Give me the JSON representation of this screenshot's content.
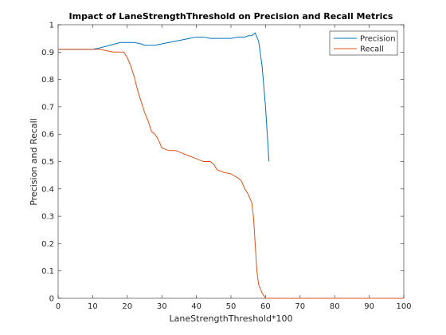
{
  "chart_data": {
    "type": "line",
    "title": "Impact of LaneStrengthThreshold on Precision and Recall Metrics",
    "xlabel": "LaneStrengthThreshold*100",
    "ylabel": "Precision and Recall",
    "xlim": [
      0,
      100
    ],
    "ylim": [
      0,
      1
    ],
    "xticks": [
      0,
      10,
      20,
      30,
      40,
      50,
      60,
      70,
      80,
      90,
      100
    ],
    "xtick_labels": [
      "0",
      "10",
      "20",
      "30",
      "40",
      "50",
      "60",
      "70",
      "80",
      "90",
      "100"
    ],
    "yticks": [
      0,
      0.1,
      0.2,
      0.3,
      0.4,
      0.5,
      0.6,
      0.7,
      0.8,
      0.9,
      1
    ],
    "ytick_labels": [
      "0",
      "0.1",
      "0.2",
      "0.3",
      "0.4",
      "0.5",
      "0.6",
      "0.7",
      "0.8",
      "0.9",
      "1"
    ],
    "grid": false,
    "legend_position": "top-right",
    "series": [
      {
        "name": "Precision",
        "color": "#0072BD",
        "x": [
          0,
          10,
          12,
          15,
          18,
          20,
          22,
          24,
          25,
          27,
          28,
          30,
          32,
          34,
          36,
          38,
          40,
          42,
          44,
          46,
          48,
          50,
          52,
          54,
          55,
          56,
          57,
          58,
          59,
          60,
          61
        ],
        "y": [
          0.91,
          0.91,
          0.915,
          0.925,
          0.935,
          0.935,
          0.935,
          0.93,
          0.925,
          0.925,
          0.925,
          0.93,
          0.935,
          0.94,
          0.945,
          0.95,
          0.955,
          0.955,
          0.95,
          0.95,
          0.95,
          0.95,
          0.955,
          0.955,
          0.96,
          0.96,
          0.97,
          0.94,
          0.85,
          0.7,
          0.5
        ]
      },
      {
        "name": "Recall",
        "color": "#D95319",
        "x": [
          0,
          5,
          10,
          12,
          14,
          16,
          18,
          19,
          20,
          21,
          22,
          23,
          24,
          25,
          26,
          27,
          28,
          29,
          30,
          32,
          34,
          36,
          38,
          40,
          42,
          43,
          44,
          45,
          46,
          48,
          50,
          52,
          53,
          54,
          55,
          56,
          56.5,
          57,
          57.5,
          58,
          59,
          60,
          100
        ],
        "y": [
          0.91,
          0.91,
          0.91,
          0.91,
          0.905,
          0.9,
          0.9,
          0.9,
          0.88,
          0.85,
          0.81,
          0.76,
          0.72,
          0.68,
          0.65,
          0.61,
          0.6,
          0.58,
          0.55,
          0.54,
          0.54,
          0.53,
          0.52,
          0.51,
          0.5,
          0.5,
          0.5,
          0.49,
          0.47,
          0.46,
          0.455,
          0.44,
          0.43,
          0.4,
          0.38,
          0.35,
          0.3,
          0.2,
          0.1,
          0.05,
          0.02,
          0.0,
          0.0
        ]
      }
    ]
  }
}
